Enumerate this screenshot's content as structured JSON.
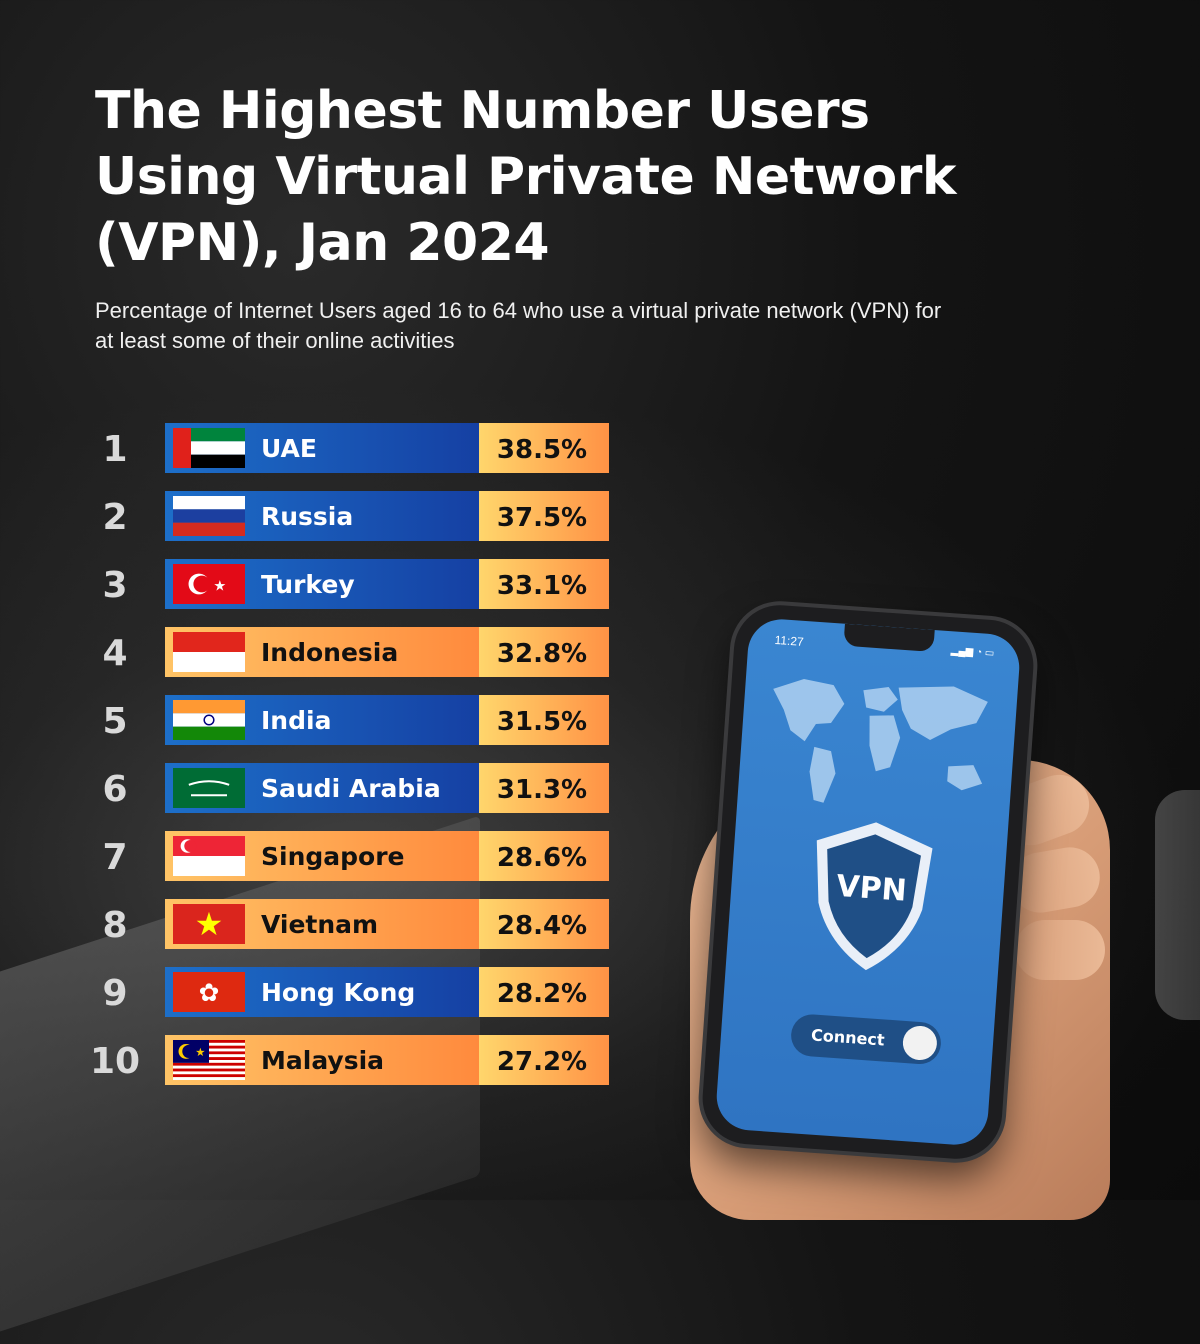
{
  "title": "The Highest Number Users Using Virtual Private Network (VPN), Jan 2024",
  "subtitle": "Percentage of Internet Users aged 16 to 64 who use a virtual private network (VPN) for at least some of their online activities",
  "phone": {
    "time": "11:27",
    "shield_label": "VPN",
    "connect_label": "Connect"
  },
  "colors": {
    "blue_bar_left": "#1d5fb8",
    "blue_bar_right": "#1447a8",
    "orange_bar_left": "#ffc266",
    "orange_bar_right": "#ff8a3d",
    "value_box_left": "#ffd46a",
    "value_box_right": "#ff9245"
  },
  "chart_data": {
    "type": "table",
    "title": "The Highest Number Users Using Virtual Private Network (VPN), Jan 2024",
    "subtitle": "Percentage of Internet Users aged 16 to 64 who use a virtual private network (VPN) for at least some of their online activities",
    "columns": [
      "rank",
      "country",
      "value"
    ],
    "rows": [
      {
        "rank": "1",
        "country": "UAE",
        "value": "38.5%",
        "percent": 38.5,
        "style": "blue",
        "flag": "uae-flag"
      },
      {
        "rank": "2",
        "country": "Russia",
        "value": "37.5%",
        "percent": 37.5,
        "style": "blue",
        "flag": "russia-flag"
      },
      {
        "rank": "3",
        "country": "Turkey",
        "value": "33.1%",
        "percent": 33.1,
        "style": "blue",
        "flag": "turkey-flag"
      },
      {
        "rank": "4",
        "country": "Indonesia",
        "value": "32.8%",
        "percent": 32.8,
        "style": "orange",
        "flag": "indonesia-flag"
      },
      {
        "rank": "5",
        "country": "India",
        "value": "31.5%",
        "percent": 31.5,
        "style": "blue",
        "flag": "india-flag"
      },
      {
        "rank": "6",
        "country": "Saudi Arabia",
        "value": "31.3%",
        "percent": 31.3,
        "style": "blue",
        "flag": "saudi-arabia-flag"
      },
      {
        "rank": "7",
        "country": "Singapore",
        "value": "28.6%",
        "percent": 28.6,
        "style": "orange",
        "flag": "singapore-flag"
      },
      {
        "rank": "8",
        "country": "Vietnam",
        "value": "28.4%",
        "percent": 28.4,
        "style": "orange",
        "flag": "vietnam-flag"
      },
      {
        "rank": "9",
        "country": "Hong Kong",
        "value": "28.2%",
        "percent": 28.2,
        "style": "blue",
        "flag": "hong-kong-flag"
      },
      {
        "rank": "10",
        "country": "Malaysia",
        "value": "27.2%",
        "percent": 27.2,
        "style": "orange",
        "flag": "malaysia-flag"
      }
    ]
  }
}
